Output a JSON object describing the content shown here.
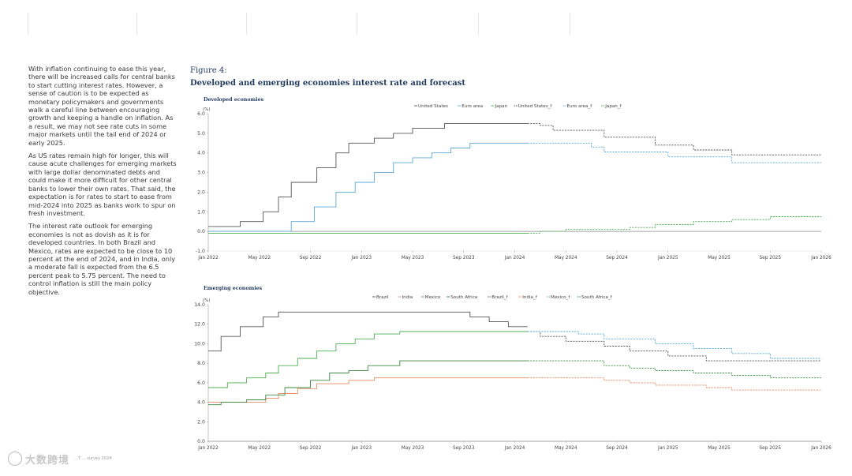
{
  "article": {
    "paragraphs": [
      "With inflation continuing to ease this year, there will be increased calls for central banks to start cutting interest rates. However, a sense of caution is to be expected as monetary policymakers and governments walk a careful line between encouraging growth and keeping a handle on inflation. As a result, we may not see rate cuts in some major markets until the tail end of 2024 or early 2025.",
      "As US rates remain high for longer, this will cause acute challenges for emerging markets with large dollar denominated debts and could make it more difficult for other central banks to lower their own rates. That said, the expectation is for rates to start to ease from mid-2024 into 2025 as banks work to spur on fresh investment.",
      "The interest rate outlook for emerging economies is not as dovish as it is for developed countries. In both Brazil and Mexico, rates are expected to be close to 10 percent at the end of 2024, and in India, only a moderate fall is expected from the 6.5 percent peak to 5.75 percent. The need to control inflation is still the main policy objective."
    ]
  },
  "figure": {
    "label": "Figure 4:",
    "title": "Developed and emerging economies interest rate and forecast"
  },
  "footer": {
    "watermark": "大数跨境",
    "source": "…T … survey 2024"
  },
  "chart_data": [
    {
      "type": "line",
      "title": "Developed economies",
      "ylabel": "(%)",
      "ylim": [
        -1.0,
        6.0
      ],
      "yticks": [
        "-1.0",
        "0.0",
        "1.0",
        "2.0",
        "3.0",
        "4.0",
        "5.0",
        "6.0"
      ],
      "xlim": [
        0,
        48
      ],
      "xticks": [
        "Jan 2022",
        "May 2022",
        "Sep 2022",
        "Jan 2023",
        "May 2023",
        "Sep 2023",
        "Jan 2024",
        "May 2024",
        "Sep 2024",
        "Jan 2025",
        "May 2025",
        "Sep 2025",
        "Jan 2026"
      ],
      "legend": [
        "United States",
        "Euro area",
        "Japan",
        "United States_f",
        "Euro area_f",
        "Japan_f"
      ],
      "series": [
        {
          "name": "United States",
          "color": "#555555",
          "dashed": false,
          "points": [
            [
              0,
              0.25
            ],
            [
              2.5,
              0.25
            ],
            [
              2.5,
              0.5
            ],
            [
              4.3,
              0.5
            ],
            [
              4.3,
              1.0
            ],
            [
              5.5,
              1.0
            ],
            [
              5.5,
              1.75
            ],
            [
              6.5,
              1.75
            ],
            [
              6.5,
              2.5
            ],
            [
              8.5,
              2.5
            ],
            [
              8.5,
              3.25
            ],
            [
              10,
              3.25
            ],
            [
              10,
              4.0
            ],
            [
              11,
              4.0
            ],
            [
              11,
              4.5
            ],
            [
              13,
              4.5
            ],
            [
              13,
              4.75
            ],
            [
              14.5,
              4.75
            ],
            [
              14.5,
              5.0
            ],
            [
              16,
              5.0
            ],
            [
              16,
              5.25
            ],
            [
              18.5,
              5.25
            ],
            [
              18.5,
              5.5
            ],
            [
              24,
              5.5
            ],
            [
              25,
              5.5
            ]
          ]
        },
        {
          "name": "Euro area",
          "color": "#5aa9d6",
          "dashed": false,
          "points": [
            [
              0,
              0.0
            ],
            [
              6.5,
              0.0
            ],
            [
              6.5,
              0.5
            ],
            [
              8.3,
              0.5
            ],
            [
              8.3,
              1.25
            ],
            [
              10,
              1.25
            ],
            [
              10,
              2.0
            ],
            [
              11.5,
              2.0
            ],
            [
              11.5,
              2.5
            ],
            [
              13,
              2.5
            ],
            [
              13,
              3.0
            ],
            [
              14.5,
              3.0
            ],
            [
              14.5,
              3.5
            ],
            [
              16,
              3.5
            ],
            [
              16,
              3.75
            ],
            [
              17.5,
              3.75
            ],
            [
              17.5,
              4.0
            ],
            [
              19,
              4.0
            ],
            [
              19,
              4.25
            ],
            [
              20.5,
              4.25
            ],
            [
              20.5,
              4.5
            ],
            [
              25,
              4.5
            ]
          ]
        },
        {
          "name": "Japan",
          "color": "#4caf50",
          "dashed": false,
          "points": [
            [
              0,
              -0.1
            ],
            [
              25,
              -0.1
            ]
          ]
        },
        {
          "name": "United States_f",
          "color": "#555555",
          "dashed": true,
          "points": [
            [
              25,
              5.5
            ],
            [
              26,
              5.5
            ],
            [
              26,
              5.4
            ],
            [
              27,
              5.4
            ],
            [
              27,
              5.15
            ],
            [
              31,
              5.15
            ],
            [
              31,
              4.8
            ],
            [
              35,
              4.8
            ],
            [
              35,
              4.4
            ],
            [
              38,
              4.4
            ],
            [
              38,
              4.15
            ],
            [
              41,
              4.15
            ],
            [
              41,
              3.9
            ],
            [
              48,
              3.9
            ]
          ]
        },
        {
          "name": "Euro area_f",
          "color": "#5aa9d6",
          "dashed": true,
          "points": [
            [
              25,
              4.5
            ],
            [
              30,
              4.5
            ],
            [
              30,
              4.3
            ],
            [
              31,
              4.3
            ],
            [
              31,
              4.05
            ],
            [
              36,
              4.05
            ],
            [
              36,
              3.8
            ],
            [
              41,
              3.8
            ],
            [
              41,
              3.5
            ],
            [
              48,
              3.5
            ]
          ]
        },
        {
          "name": "Japan_f",
          "color": "#4caf50",
          "dashed": true,
          "points": [
            [
              25,
              -0.1
            ],
            [
              26,
              -0.1
            ],
            [
              26,
              0.0
            ],
            [
              28,
              0.0
            ],
            [
              28,
              0.1
            ],
            [
              33,
              0.1
            ],
            [
              33,
              0.2
            ],
            [
              35,
              0.2
            ],
            [
              35,
              0.35
            ],
            [
              38,
              0.35
            ],
            [
              38,
              0.5
            ],
            [
              41,
              0.5
            ],
            [
              41,
              0.6
            ],
            [
              44,
              0.6
            ],
            [
              44,
              0.75
            ],
            [
              48,
              0.75
            ]
          ]
        }
      ]
    },
    {
      "type": "line",
      "title": "Emerging economies",
      "ylabel": "(%)",
      "ylim": [
        0.0,
        14.0
      ],
      "yticks": [
        "0.0",
        "2.0",
        "4.0",
        "6.0",
        "8.0",
        "10.0",
        "12.0",
        "14.0"
      ],
      "xlim": [
        0,
        48
      ],
      "xticks": [
        "Jan 2022",
        "May 2022",
        "Sep 2022",
        "Jan 2023",
        "May 2023",
        "Sep 2023",
        "Jan 2024",
        "May 2024",
        "Sep 2024",
        "Jan 2025",
        "May 2025",
        "Sep 2025",
        "Jan 2026"
      ],
      "legend": [
        "Brazil",
        "India",
        "Mexico",
        "South Africa",
        "Brazil_f",
        "India_f",
        "Mexico_f",
        "South Africa_f"
      ],
      "series": [
        {
          "name": "Brazil",
          "color": "#555555",
          "dashed": false,
          "points": [
            [
              0,
              9.25
            ],
            [
              1,
              9.25
            ],
            [
              1,
              10.75
            ],
            [
              2.5,
              10.75
            ],
            [
              2.5,
              11.75
            ],
            [
              4.3,
              11.75
            ],
            [
              4.3,
              12.75
            ],
            [
              5.5,
              12.75
            ],
            [
              5.5,
              13.25
            ],
            [
              20.5,
              13.25
            ],
            [
              20.5,
              12.75
            ],
            [
              22,
              12.75
            ],
            [
              22,
              12.25
            ],
            [
              23.5,
              12.25
            ],
            [
              23.5,
              11.75
            ],
            [
              25,
              11.75
            ]
          ]
        },
        {
          "name": "India",
          "color": "#e38b61",
          "dashed": false,
          "points": [
            [
              0,
              4.0
            ],
            [
              4.5,
              4.0
            ],
            [
              4.5,
              4.4
            ],
            [
              5.5,
              4.4
            ],
            [
              5.5,
              4.9
            ],
            [
              7,
              4.9
            ],
            [
              7,
              5.4
            ],
            [
              8.5,
              5.4
            ],
            [
              8.5,
              5.9
            ],
            [
              11,
              5.9
            ],
            [
              11,
              6.25
            ],
            [
              13,
              6.25
            ],
            [
              13,
              6.5
            ],
            [
              25,
              6.5
            ]
          ]
        },
        {
          "name": "Mexico",
          "color": "#4caf50",
          "dashed": false,
          "points": [
            [
              0,
              5.5
            ],
            [
              1.5,
              5.5
            ],
            [
              1.5,
              6.0
            ],
            [
              3,
              6.0
            ],
            [
              3,
              6.5
            ],
            [
              4.5,
              6.5
            ],
            [
              4.5,
              7.0
            ],
            [
              5.5,
              7.0
            ],
            [
              5.5,
              7.75
            ],
            [
              7,
              7.75
            ],
            [
              7,
              8.5
            ],
            [
              8.5,
              8.5
            ],
            [
              8.5,
              9.25
            ],
            [
              10,
              9.25
            ],
            [
              10,
              10.0
            ],
            [
              11.5,
              10.0
            ],
            [
              11.5,
              10.5
            ],
            [
              13,
              10.5
            ],
            [
              13,
              11.0
            ],
            [
              15,
              11.0
            ],
            [
              15,
              11.25
            ],
            [
              25,
              11.25
            ]
          ]
        },
        {
          "name": "South Africa",
          "color": "#3a8a3f",
          "dashed": false,
          "points": [
            [
              0,
              3.75
            ],
            [
              1,
              3.75
            ],
            [
              1,
              4.0
            ],
            [
              3,
              4.0
            ],
            [
              3,
              4.25
            ],
            [
              4.5,
              4.25
            ],
            [
              4.5,
              4.75
            ],
            [
              6,
              4.75
            ],
            [
              6,
              5.5
            ],
            [
              8,
              5.5
            ],
            [
              8,
              6.25
            ],
            [
              9.5,
              6.25
            ],
            [
              9.5,
              7.0
            ],
            [
              11,
              7.0
            ],
            [
              11,
              7.25
            ],
            [
              12.5,
              7.25
            ],
            [
              12.5,
              7.75
            ],
            [
              15,
              7.75
            ],
            [
              15,
              8.25
            ],
            [
              25,
              8.25
            ]
          ]
        },
        {
          "name": "Brazil_f",
          "color": "#555555",
          "dashed": true,
          "points": [
            [
              25,
              11.25
            ],
            [
              26,
              11.25
            ],
            [
              26,
              10.75
            ],
            [
              28,
              10.75
            ],
            [
              28,
              10.25
            ],
            [
              31,
              10.25
            ],
            [
              31,
              9.75
            ],
            [
              33,
              9.75
            ],
            [
              33,
              9.25
            ],
            [
              36,
              9.25
            ],
            [
              36,
              8.75
            ],
            [
              39,
              8.75
            ],
            [
              39,
              8.25
            ],
            [
              48,
              8.25
            ]
          ]
        },
        {
          "name": "India_f",
          "color": "#e38b61",
          "dashed": true,
          "points": [
            [
              25,
              6.5
            ],
            [
              31,
              6.5
            ],
            [
              31,
              6.25
            ],
            [
              33,
              6.25
            ],
            [
              33,
              6.0
            ],
            [
              35,
              6.0
            ],
            [
              35,
              5.75
            ],
            [
              39,
              5.75
            ],
            [
              39,
              5.5
            ],
            [
              41,
              5.5
            ],
            [
              41,
              5.25
            ],
            [
              48,
              5.25
            ]
          ]
        },
        {
          "name": "Mexico_f",
          "color": "#5aa9d6",
          "dashed": true,
          "points": [
            [
              25,
              11.25
            ],
            [
              29,
              11.25
            ],
            [
              29,
              11.0
            ],
            [
              31,
              11.0
            ],
            [
              31,
              10.5
            ],
            [
              35,
              10.5
            ],
            [
              35,
              10.0
            ],
            [
              38,
              10.0
            ],
            [
              38,
              9.5
            ],
            [
              41,
              9.5
            ],
            [
              41,
              9.0
            ],
            [
              44,
              9.0
            ],
            [
              44,
              8.5
            ],
            [
              48,
              8.5
            ]
          ]
        },
        {
          "name": "South Africa_f",
          "color": "#3a8a3f",
          "dashed": true,
          "points": [
            [
              25,
              8.25
            ],
            [
              31,
              8.25
            ],
            [
              31,
              7.75
            ],
            [
              33,
              7.75
            ],
            [
              33,
              7.5
            ],
            [
              35,
              7.5
            ],
            [
              35,
              7.25
            ],
            [
              38,
              7.25
            ],
            [
              38,
              7.0
            ],
            [
              41,
              7.0
            ],
            [
              41,
              6.75
            ],
            [
              44,
              6.75
            ],
            [
              44,
              6.5
            ],
            [
              48,
              6.5
            ]
          ]
        }
      ]
    }
  ]
}
